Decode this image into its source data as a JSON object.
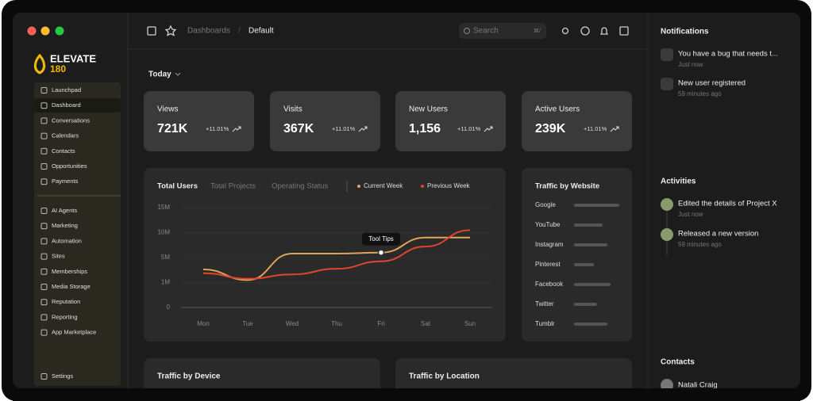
{
  "brand": {
    "name": "ELEVATE",
    "sub": "180"
  },
  "sidebar": {
    "primary": [
      "Launchpad",
      "Dashboard",
      "Conversations",
      "Calendars",
      "Contacts",
      "Opportunities",
      "Payments"
    ],
    "secondary": [
      "AI Agents",
      "Marketing",
      "Automation",
      "Sites",
      "Memberships",
      "Media Storage",
      "Reputation",
      "Reporting",
      "App Marketplace"
    ],
    "settings": "Settings"
  },
  "topbar": {
    "breadcrumb": [
      "Dashboards",
      "/",
      "Default"
    ],
    "search": "Search",
    "shortcut": "⌘/"
  },
  "period": "Today",
  "stats": [
    {
      "label": "Views",
      "value": "721K",
      "change": "+11.01%"
    },
    {
      "label": "Visits",
      "value": "367K",
      "change": "+11.01%"
    },
    {
      "label": "New Users",
      "value": "1,156",
      "change": "+11.01%"
    },
    {
      "label": "Active Users",
      "value": "239K",
      "change": "+11.01%"
    }
  ],
  "chart_data": {
    "type": "line",
    "tabs": [
      "Total Users",
      "Total Projects",
      "Operating Status"
    ],
    "categories": [
      "Mon",
      "Tue",
      "Wed",
      "Thu",
      "Fri",
      "Sat",
      "Sun"
    ],
    "series": [
      {
        "name": "Current Week",
        "color": "#e0a458",
        "values": [
          3.1,
          1.4,
          5.8,
          5.8,
          6,
          9,
          9
        ]
      },
      {
        "name": "Previous Week",
        "color": "#e0452b",
        "values": [
          2.5,
          1.6,
          2.3,
          3.2,
          4.4,
          7.2,
          10.5
        ]
      }
    ],
    "ylim": [
      0,
      15
    ],
    "yticks": [
      0,
      {
        "value": 1,
        "label": "1M"
      },
      {
        "value": 5,
        "label": "5M"
      },
      {
        "value": 10,
        "label": "10M"
      },
      {
        "value": 15,
        "label": "15M"
      }
    ],
    "tooltip": "Tool Tips"
  },
  "traffic_by_website": {
    "title": "Traffic by Website",
    "sites": [
      "Google",
      "YouTube",
      "Instagram",
      "Pinterest",
      "Facebook",
      "Twitter",
      "Tumblr"
    ],
    "values": [
      95,
      60,
      70,
      42,
      77,
      48,
      70
    ]
  },
  "panels": [
    "Traffic by Device",
    "Traffic by Location"
  ],
  "notifications": {
    "title": "Notifications",
    "items": [
      {
        "text": "You have a bug that needs t...",
        "time": "Just now"
      },
      {
        "text": "New user registered",
        "time": "59 minutes ago"
      }
    ]
  },
  "activities": {
    "title": "Activities",
    "items": [
      {
        "text": "Edited the details of Project X",
        "time": "Just now"
      },
      {
        "text": "Released a new version",
        "time": "59 minutes ago"
      }
    ]
  },
  "contacts": {
    "title": "Contacts",
    "items": [
      "Natali Craig"
    ]
  }
}
